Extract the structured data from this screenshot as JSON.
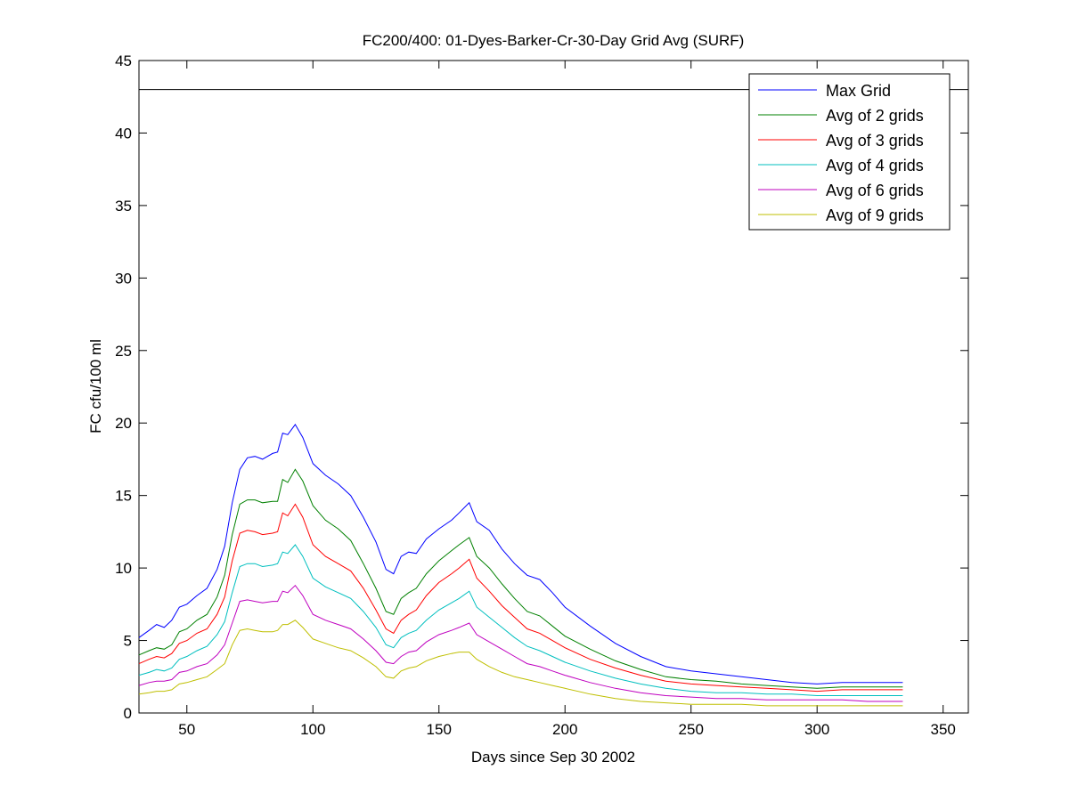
{
  "chart_data": {
    "type": "line",
    "title": "FC200/400: 01-Dyes-Barker-Cr-30-Day Grid Avg (SURF)",
    "xlabel": "Days since Sep 30 2002",
    "ylabel": "FC cfu/100 ml",
    "xlim": [
      31,
      360
    ],
    "ylim": [
      0,
      45
    ],
    "xticks": [
      50,
      100,
      150,
      200,
      250,
      300,
      350
    ],
    "yticks": [
      0,
      5,
      10,
      15,
      20,
      25,
      30,
      35,
      40,
      45
    ],
    "grid": false,
    "legend_position": "top-right",
    "reference_line": {
      "y": 43,
      "color": "#000000"
    },
    "x": [
      31,
      35,
      38,
      41,
      44,
      47,
      50,
      54,
      58,
      62,
      65,
      68,
      71,
      74,
      77,
      80,
      84,
      86,
      88,
      90,
      93,
      96,
      100,
      105,
      110,
      115,
      120,
      125,
      129,
      132,
      135,
      138,
      141,
      145,
      150,
      155,
      158,
      162,
      165,
      170,
      175,
      180,
      185,
      190,
      195,
      200,
      210,
      220,
      230,
      240,
      250,
      260,
      270,
      280,
      290,
      300,
      310,
      320,
      334
    ],
    "series": [
      {
        "name": "Max Grid",
        "color": "#0000ff",
        "values": [
          5.2,
          5.7,
          6.1,
          5.9,
          6.4,
          7.3,
          7.5,
          8.1,
          8.6,
          9.9,
          11.5,
          14.5,
          16.8,
          17.6,
          17.7,
          17.5,
          17.9,
          18.0,
          19.3,
          19.2,
          19.9,
          19.0,
          17.2,
          16.4,
          15.8,
          15.0,
          13.5,
          11.8,
          9.9,
          9.6,
          10.8,
          11.1,
          11.0,
          12.0,
          12.7,
          13.3,
          13.8,
          14.5,
          13.2,
          12.6,
          11.3,
          10.3,
          9.5,
          9.2,
          8.3,
          7.3,
          6.0,
          4.8,
          3.9,
          3.2,
          2.9,
          2.7,
          2.5,
          2.3,
          2.1,
          2.0,
          2.1,
          2.1,
          2.1
        ]
      },
      {
        "name": "Avg of 2 grids",
        "color": "#008000",
        "values": [
          4.0,
          4.3,
          4.5,
          4.4,
          4.7,
          5.6,
          5.8,
          6.4,
          6.8,
          8.0,
          9.5,
          12.3,
          14.4,
          14.7,
          14.7,
          14.5,
          14.6,
          14.6,
          16.1,
          15.9,
          16.8,
          16.0,
          14.3,
          13.3,
          12.7,
          11.9,
          10.3,
          8.6,
          7.0,
          6.8,
          7.9,
          8.3,
          8.6,
          9.6,
          10.5,
          11.2,
          11.6,
          12.1,
          10.8,
          10.0,
          8.9,
          7.9,
          7.0,
          6.7,
          6.0,
          5.3,
          4.4,
          3.6,
          3.0,
          2.5,
          2.3,
          2.2,
          2.0,
          1.9,
          1.8,
          1.7,
          1.8,
          1.8,
          1.8
        ]
      },
      {
        "name": "Avg of 3 grids",
        "color": "#ff0000",
        "values": [
          3.4,
          3.7,
          3.9,
          3.8,
          4.1,
          4.8,
          5.0,
          5.5,
          5.8,
          6.8,
          8.0,
          10.5,
          12.4,
          12.6,
          12.5,
          12.3,
          12.4,
          12.5,
          13.8,
          13.6,
          14.4,
          13.5,
          11.6,
          10.8,
          10.3,
          9.8,
          8.6,
          7.1,
          5.8,
          5.5,
          6.4,
          6.8,
          7.1,
          8.1,
          9.0,
          9.6,
          10.0,
          10.6,
          9.3,
          8.4,
          7.4,
          6.6,
          5.8,
          5.5,
          5.0,
          4.5,
          3.7,
          3.1,
          2.6,
          2.2,
          2.0,
          1.9,
          1.8,
          1.7,
          1.6,
          1.5,
          1.6,
          1.6,
          1.6
        ]
      },
      {
        "name": "Avg of 4 grids",
        "color": "#00bfbf",
        "values": [
          2.6,
          2.8,
          3.0,
          2.9,
          3.1,
          3.7,
          3.9,
          4.3,
          4.6,
          5.4,
          6.3,
          8.3,
          10.1,
          10.3,
          10.3,
          10.1,
          10.2,
          10.3,
          11.1,
          11.0,
          11.6,
          10.8,
          9.3,
          8.7,
          8.3,
          7.9,
          7.0,
          5.9,
          4.7,
          4.5,
          5.2,
          5.5,
          5.7,
          6.4,
          7.1,
          7.6,
          7.9,
          8.4,
          7.3,
          6.6,
          5.9,
          5.2,
          4.6,
          4.3,
          3.9,
          3.5,
          2.9,
          2.4,
          2.0,
          1.7,
          1.5,
          1.4,
          1.4,
          1.3,
          1.3,
          1.2,
          1.2,
          1.2,
          1.2
        ]
      },
      {
        "name": "Avg of 6 grids",
        "color": "#bf00bf",
        "values": [
          1.9,
          2.1,
          2.2,
          2.2,
          2.3,
          2.8,
          2.9,
          3.2,
          3.4,
          4.0,
          4.7,
          6.2,
          7.7,
          7.8,
          7.7,
          7.6,
          7.7,
          7.7,
          8.4,
          8.3,
          8.8,
          8.1,
          6.8,
          6.4,
          6.1,
          5.8,
          5.1,
          4.3,
          3.5,
          3.4,
          3.9,
          4.2,
          4.3,
          4.9,
          5.4,
          5.7,
          5.9,
          6.2,
          5.4,
          4.9,
          4.4,
          3.9,
          3.4,
          3.2,
          2.9,
          2.6,
          2.1,
          1.7,
          1.4,
          1.2,
          1.1,
          1.0,
          1.0,
          0.9,
          0.9,
          0.9,
          0.9,
          0.8,
          0.8
        ]
      },
      {
        "name": "Avg of 9 grids",
        "color": "#bfbf00",
        "values": [
          1.3,
          1.4,
          1.5,
          1.5,
          1.6,
          2.0,
          2.1,
          2.3,
          2.5,
          3.0,
          3.4,
          4.7,
          5.7,
          5.8,
          5.7,
          5.6,
          5.6,
          5.7,
          6.1,
          6.1,
          6.4,
          5.9,
          5.1,
          4.8,
          4.5,
          4.3,
          3.8,
          3.2,
          2.5,
          2.4,
          2.9,
          3.1,
          3.2,
          3.6,
          3.9,
          4.1,
          4.2,
          4.2,
          3.7,
          3.2,
          2.8,
          2.5,
          2.3,
          2.1,
          1.9,
          1.7,
          1.3,
          1.0,
          0.8,
          0.7,
          0.6,
          0.6,
          0.6,
          0.5,
          0.5,
          0.5,
          0.5,
          0.5,
          0.5
        ]
      }
    ]
  }
}
